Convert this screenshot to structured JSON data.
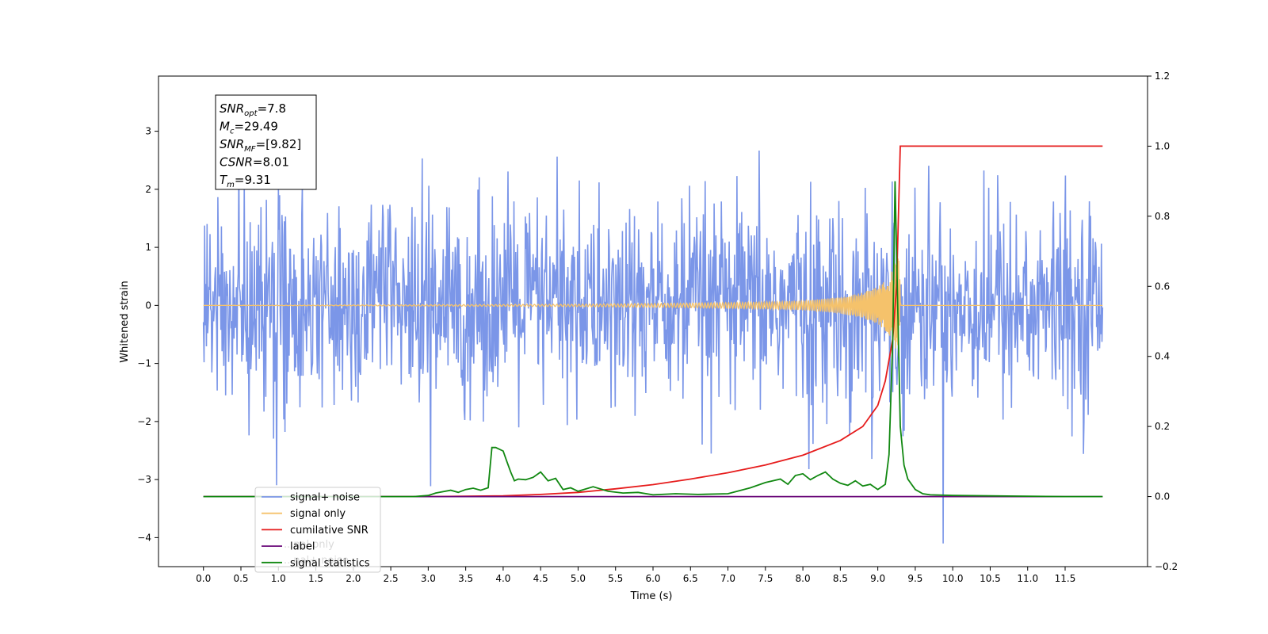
{
  "chart_data": {
    "type": "line",
    "xlabel": "Time (s)",
    "ylabel": "Whitened strain",
    "xlim": [
      -0.6,
      12.6
    ],
    "ylim": [
      -4.5,
      3.95
    ],
    "y2lim": [
      -0.2,
      1.2
    ],
    "x_ticks": [
      "0.0",
      "0.5",
      "1.0",
      "1.5",
      "2.0",
      "2.5",
      "3.0",
      "3.5",
      "4.0",
      "4.5",
      "5.0",
      "5.5",
      "6.0",
      "6.5",
      "7.0",
      "7.5",
      "8.0",
      "8.5",
      "9.0",
      "9.5",
      "10.0",
      "10.5",
      "11.0",
      "11.5"
    ],
    "y_ticks": [
      "−4",
      "−3",
      "−2",
      "−1",
      "0",
      "1",
      "2",
      "3"
    ],
    "y2_ticks": [
      "−0.2",
      "0.0",
      "0.2",
      "0.4",
      "0.6",
      "0.8",
      "1.0",
      "1.2"
    ],
    "annotation": {
      "lines": [
        {
          "sym": "SNR",
          "sub": "opt",
          "value": "=7.8"
        },
        {
          "sym": "M",
          "sub": "c",
          "value": "=29.49"
        },
        {
          "sym": "SNR",
          "sub": "MF",
          "value": "=[9.82]"
        },
        {
          "sym": "CSNR",
          "sub": "",
          "value": "=8.01"
        },
        {
          "sym": "T",
          "sub": "m",
          "value": "=9.31"
        }
      ]
    },
    "legend": {
      "placement": "lower-left",
      "entries": [
        {
          "label": "signal+ noise",
          "color": "#7b96e8"
        },
        {
          "label": "signal only",
          "color": "#f5c26b"
        },
        {
          "label": "cumilative SNR",
          "color": "#e61c1c"
        },
        {
          "label": "label",
          "color": "#6b0a7a"
        },
        {
          "label": "signal statistics",
          "color": "#118811"
        }
      ],
      "hidden_text": [
        "...nal only",
        "...nal+ noise"
      ]
    },
    "series": [
      {
        "name": "signal+ noise",
        "axis": "left",
        "color": "#7b96e8",
        "description": "white noise, std ~0.85, x from 0 to 12"
      },
      {
        "name": "signal only",
        "axis": "left",
        "color": "#f5c26b",
        "chirp_peak_time": 9.28,
        "envelope": [
          [
            0,
            0
          ],
          [
            5,
            0.02
          ],
          [
            6.5,
            0.04
          ],
          [
            7.5,
            0.06
          ],
          [
            8,
            0.08
          ],
          [
            8.5,
            0.14
          ],
          [
            8.8,
            0.22
          ],
          [
            9.0,
            0.32
          ],
          [
            9.15,
            0.5
          ],
          [
            9.22,
            0.7
          ],
          [
            9.28,
            0.9
          ],
          [
            9.31,
            0
          ]
        ]
      },
      {
        "name": "cumilative SNR",
        "axis": "right",
        "color": "#e61c1c",
        "x": [
          0,
          3,
          4,
          4.5,
          5,
          5.5,
          6,
          6.5,
          7,
          7.5,
          8,
          8.5,
          8.8,
          9.0,
          9.1,
          9.2,
          9.25,
          9.3,
          12
        ],
        "y": [
          0,
          0,
          0.002,
          0.006,
          0.012,
          0.022,
          0.034,
          0.05,
          0.068,
          0.09,
          0.118,
          0.16,
          0.2,
          0.26,
          0.33,
          0.45,
          0.6,
          1.0,
          1.0
        ]
      },
      {
        "name": "label",
        "axis": "right",
        "color": "#6b0a7a",
        "x": [
          0,
          12
        ],
        "y": [
          0,
          0
        ]
      },
      {
        "name": "signal statistics",
        "axis": "right",
        "color": "#118811",
        "x": [
          0,
          2.8,
          3.0,
          3.1,
          3.3,
          3.4,
          3.5,
          3.6,
          3.7,
          3.8,
          3.85,
          3.9,
          4.0,
          4.05,
          4.1,
          4.15,
          4.2,
          4.3,
          4.4,
          4.5,
          4.6,
          4.7,
          4.8,
          4.9,
          5.0,
          5.2,
          5.4,
          5.6,
          5.8,
          6.0,
          6.3,
          6.6,
          7.0,
          7.3,
          7.5,
          7.7,
          7.8,
          7.9,
          8.0,
          8.1,
          8.2,
          8.3,
          8.4,
          8.5,
          8.6,
          8.7,
          8.8,
          8.9,
          9.0,
          9.1,
          9.15,
          9.2,
          9.23,
          9.27,
          9.3,
          9.35,
          9.4,
          9.5,
          9.6,
          9.7,
          10,
          10.5,
          11,
          11.5,
          12
        ],
        "y": [
          0,
          0,
          0.003,
          0.01,
          0.018,
          0.012,
          0.02,
          0.024,
          0.018,
          0.025,
          0.14,
          0.14,
          0.13,
          0.1,
          0.07,
          0.045,
          0.05,
          0.048,
          0.055,
          0.07,
          0.045,
          0.052,
          0.02,
          0.025,
          0.015,
          0.028,
          0.015,
          0.01,
          0.012,
          0.005,
          0.008,
          0.006,
          0.008,
          0.025,
          0.04,
          0.05,
          0.035,
          0.06,
          0.065,
          0.048,
          0.06,
          0.07,
          0.05,
          0.038,
          0.032,
          0.045,
          0.03,
          0.035,
          0.02,
          0.035,
          0.12,
          0.45,
          0.9,
          0.5,
          0.2,
          0.09,
          0.05,
          0.02,
          0.008,
          0.005,
          0.003,
          0.002,
          0.001,
          0,
          0
        ]
      }
    ]
  }
}
